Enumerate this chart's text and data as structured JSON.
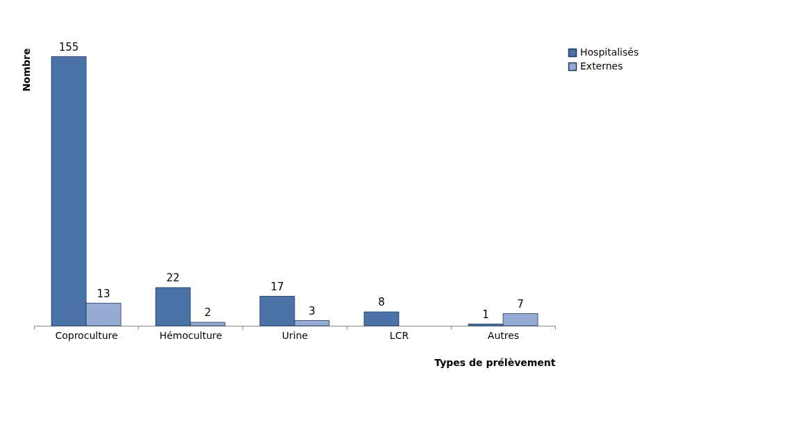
{
  "chart_data": {
    "type": "bar",
    "xlabel": "Types de prélèvement",
    "ylabel": "Nombre",
    "categories": [
      "Coproculture",
      "Hémoculture",
      "Urine",
      "LCR",
      "Autres"
    ],
    "series": [
      {
        "name": "Hospitalisés",
        "color": "#4a72a8",
        "values": [
          155,
          22,
          17,
          8,
          1
        ]
      },
      {
        "name": "Externes",
        "color": "#95abd4",
        "values": [
          13,
          2,
          3,
          null,
          7
        ]
      }
    ],
    "data_labels": true,
    "legend": "right",
    "grid": false,
    "tick_labels": "x"
  }
}
